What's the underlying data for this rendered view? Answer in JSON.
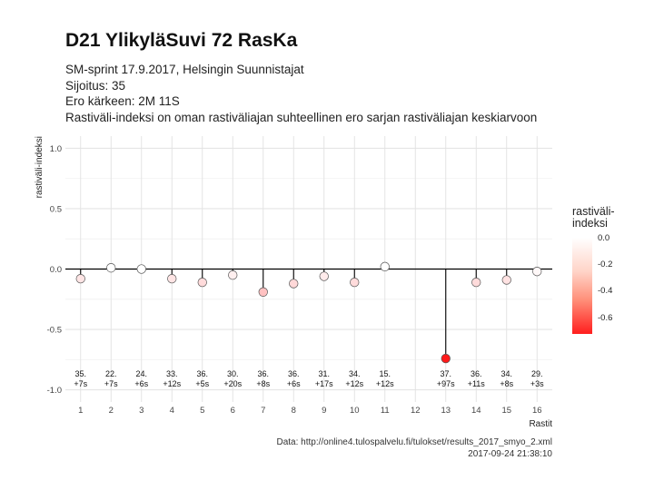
{
  "header": {
    "title": "D21 YlikyläSuvi 72 RasKa",
    "subtitle_lines": [
      "SM-sprint 17.9.2017, Helsingin Suunnistajat",
      "Sijoitus: 35",
      "Ero kärkeen: 2M 11S",
      "Rastiväli-indeksi on oman rastiväliajan suhteellinen ero sarjan rastiväliajan keskiarvoon"
    ]
  },
  "caption": {
    "source": "Data: http://online4.tulospalvelu.fi/tulokset/results_2017_smyo_2.xml",
    "timestamp": "2017-09-24 21:38:10"
  },
  "legend": {
    "title_lines": [
      "rastiväli-",
      "indeksi"
    ],
    "labels": [
      "0.0",
      "-0.2",
      "-0.4",
      "-0.6"
    ],
    "color_low": "#ff1a1a",
    "color_high": "#ffffff"
  },
  "chart_data": {
    "type": "scatter",
    "title": "D21 YlikyläSuvi 72 RasKa",
    "xlabel": "Rastit",
    "ylabel": "rastiväli-indeksi",
    "x_ticks": [
      1,
      2,
      3,
      4,
      5,
      6,
      7,
      8,
      9,
      10,
      11,
      12,
      13,
      14,
      15,
      16
    ],
    "y_ticks": [
      "1.0",
      "0.5",
      "0.0",
      "-0.5",
      "-1.0"
    ],
    "xlim": [
      0.5,
      16.5
    ],
    "ylim": [
      -1.1,
      1.1
    ],
    "grid": true,
    "reference_line": 0,
    "points": [
      {
        "x": 1,
        "y": -0.08,
        "rank": "35.",
        "diff": "+7s"
      },
      {
        "x": 2,
        "y": 0.01,
        "rank": "22.",
        "diff": "+7s"
      },
      {
        "x": 3,
        "y": 0.0,
        "rank": "24.",
        "diff": "+6s"
      },
      {
        "x": 4,
        "y": -0.08,
        "rank": "33.",
        "diff": "+12s"
      },
      {
        "x": 5,
        "y": -0.11,
        "rank": "36.",
        "diff": "+5s"
      },
      {
        "x": 6,
        "y": -0.05,
        "rank": "30.",
        "diff": "+20s"
      },
      {
        "x": 7,
        "y": -0.19,
        "rank": "36.",
        "diff": "+8s"
      },
      {
        "x": 8,
        "y": -0.12,
        "rank": "36.",
        "diff": "+6s"
      },
      {
        "x": 9,
        "y": -0.06,
        "rank": "31.",
        "diff": "+17s"
      },
      {
        "x": 10,
        "y": -0.11,
        "rank": "34.",
        "diff": "+12s"
      },
      {
        "x": 11,
        "y": 0.02,
        "rank": "15.",
        "diff": "+12s"
      },
      {
        "x": 13,
        "y": -0.74,
        "rank": "37.",
        "diff": "+97s"
      },
      {
        "x": 14,
        "y": -0.11,
        "rank": "36.",
        "diff": "+11s"
      },
      {
        "x": 15,
        "y": -0.09,
        "rank": "34.",
        "diff": "+8s"
      },
      {
        "x": 16,
        "y": -0.02,
        "rank": "29.",
        "diff": "+3s"
      }
    ]
  }
}
